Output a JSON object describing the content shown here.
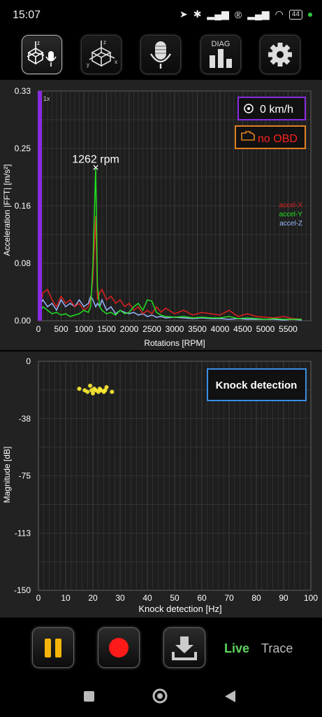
{
  "status_bar": {
    "time": "15:07",
    "battery": "44"
  },
  "toolbar": {
    "buttons": [
      {
        "name": "accel-mic-mode",
        "active": true
      },
      {
        "name": "accel-3d-mode",
        "active": false
      },
      {
        "name": "mic-mode",
        "active": false
      },
      {
        "name": "diag-mode",
        "label": "DIAG",
        "active": false
      },
      {
        "name": "settings",
        "active": false
      }
    ]
  },
  "fft_chart": {
    "chart_data": {
      "type": "line",
      "xlabel": "Rotations [RPM]",
      "ylabel": "Acceleration |FFT| [m/s²]",
      "xlim": [
        0,
        6000
      ],
      "ylim": [
        0,
        0.33
      ],
      "x_ticks": [
        "0",
        "500",
        "1000",
        "1500",
        "2000",
        "2500",
        "3000",
        "3500",
        "4000",
        "4500",
        "5000",
        "5500"
      ],
      "y_ticks": [
        "0.00",
        "0.08",
        "0.16",
        "0.25",
        "0.33"
      ],
      "grid": true,
      "legend_position": "right",
      "peak_marker": {
        "x": 1262,
        "y": 0.22,
        "label": "1262 rpm"
      },
      "cursor_label": "1x",
      "series": [
        {
          "name": "accel-X",
          "color": "#e02020",
          "x": [
            0,
            100,
            200,
            300,
            400,
            500,
            600,
            700,
            800,
            900,
            1000,
            1100,
            1150,
            1200,
            1262,
            1300,
            1350,
            1400,
            1500,
            1600,
            1700,
            1800,
            1900,
            2000,
            2100,
            2200,
            2300,
            2400,
            2500,
            2600,
            2700,
            2800,
            3000,
            3200,
            3400,
            3600,
            3800,
            4000,
            4200,
            4400,
            4600,
            4800,
            5000,
            5200,
            5400,
            5600,
            5800
          ],
          "y": [
            0.01,
            0.04,
            0.045,
            0.03,
            0.02,
            0.035,
            0.025,
            0.03,
            0.02,
            0.025,
            0.015,
            0.02,
            0.03,
            0.06,
            0.15,
            0.03,
            0.04,
            0.045,
            0.03,
            0.035,
            0.025,
            0.03,
            0.02,
            0.025,
            0.015,
            0.02,
            0.01,
            0.015,
            0.01,
            0.02,
            0.012,
            0.018,
            0.01,
            0.015,
            0.008,
            0.012,
            0.01,
            0.008,
            0.015,
            0.006,
            0.01,
            0.006,
            0.005,
            0.004,
            0.006,
            0.003,
            0.002
          ]
        },
        {
          "name": "accel-Y",
          "color": "#20e020",
          "x": [
            0,
            100,
            200,
            300,
            400,
            500,
            600,
            700,
            800,
            900,
            1000,
            1100,
            1150,
            1200,
            1262,
            1300,
            1350,
            1400,
            1500,
            1600,
            1700,
            1800,
            1900,
            2000,
            2100,
            2200,
            2300,
            2400,
            2500,
            2600,
            2700,
            2800,
            3000,
            3200,
            3400,
            3600,
            3800,
            4000,
            4200,
            4400,
            4600,
            4800,
            5000,
            5200,
            5400,
            5600,
            5800
          ],
          "y": [
            0.01,
            0.02,
            0.015,
            0.01,
            0.012,
            0.008,
            0.01,
            0.006,
            0.008,
            0.01,
            0.015,
            0.012,
            0.02,
            0.08,
            0.22,
            0.05,
            0.02,
            0.015,
            0.01,
            0.012,
            0.008,
            0.015,
            0.01,
            0.012,
            0.02,
            0.025,
            0.015,
            0.03,
            0.028,
            0.012,
            0.008,
            0.006,
            0.005,
            0.006,
            0.004,
            0.005,
            0.004,
            0.004,
            0.006,
            0.003,
            0.004,
            0.003,
            0.002,
            0.003,
            0.002,
            0.002,
            0.002
          ]
        },
        {
          "name": "accel-Z",
          "color": "#9ab8ff",
          "x": [
            0,
            100,
            200,
            300,
            400,
            500,
            600,
            700,
            800,
            900,
            1000,
            1100,
            1150,
            1200,
            1262,
            1300,
            1350,
            1400,
            1500,
            1600,
            1700,
            1800,
            1900,
            2000,
            2100,
            2200,
            2300,
            2400,
            2500,
            2600,
            2700,
            2800,
            3000,
            3200,
            3400,
            3600,
            3800,
            4000,
            4200,
            4400,
            4600,
            4800,
            5000,
            5200,
            5400,
            5600,
            5800
          ],
          "y": [
            0.02,
            0.03,
            0.02,
            0.025,
            0.015,
            0.03,
            0.02,
            0.025,
            0.02,
            0.03,
            0.02,
            0.025,
            0.035,
            0.03,
            0.02,
            0.025,
            0.02,
            0.03,
            0.015,
            0.02,
            0.01,
            0.015,
            0.012,
            0.01,
            0.012,
            0.008,
            0.01,
            0.006,
            0.008,
            0.005,
            0.006,
            0.004,
            0.005,
            0.004,
            0.003,
            0.004,
            0.003,
            0.003,
            0.002,
            0.003,
            0.002,
            0.002,
            0.002,
            0.002,
            0.001,
            0.002,
            0.001
          ]
        }
      ]
    },
    "speed": "0 km/h",
    "obd": "no OBD"
  },
  "knock_chart": {
    "chart_data": {
      "type": "scatter",
      "title": "Knock detection",
      "xlabel": "Knock detection [Hz]",
      "ylabel": "Magnitude [dB]",
      "xlim": [
        0,
        100
      ],
      "ylim": [
        -150,
        0
      ],
      "x_ticks": [
        "0",
        "10",
        "20",
        "30",
        "40",
        "50",
        "60",
        "70",
        "80",
        "90",
        "100"
      ],
      "y_ticks": [
        "0",
        "-38",
        "-75",
        "-113",
        "-150"
      ],
      "grid": true,
      "points": [
        {
          "x": 15,
          "y": -18
        },
        {
          "x": 17,
          "y": -19
        },
        {
          "x": 18,
          "y": -20
        },
        {
          "x": 19,
          "y": -16
        },
        {
          "x": 19.5,
          "y": -19
        },
        {
          "x": 20,
          "y": -21
        },
        {
          "x": 20.5,
          "y": -18
        },
        {
          "x": 21,
          "y": -19
        },
        {
          "x": 22,
          "y": -20
        },
        {
          "x": 22.5,
          "y": -18
        },
        {
          "x": 23,
          "y": -19
        },
        {
          "x": 24,
          "y": -20
        },
        {
          "x": 24.5,
          "y": -19
        },
        {
          "x": 25,
          "y": -17
        },
        {
          "x": 27,
          "y": -20
        }
      ],
      "point_color": "#ffee33"
    }
  },
  "controls": {
    "live_label": "Live",
    "trace_label": "Trace"
  }
}
